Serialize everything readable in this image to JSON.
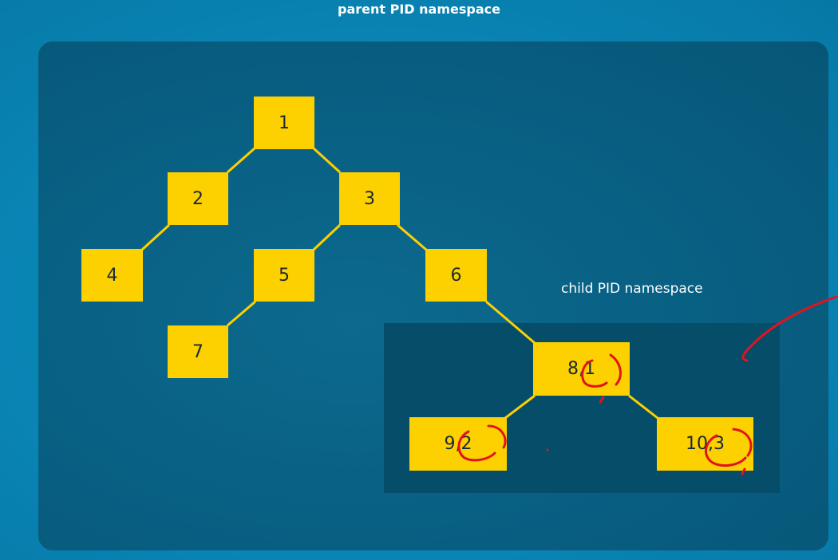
{
  "diagram": {
    "parent_label": "parent PID namespace",
    "child_label": "child PID namespace",
    "nodes": {
      "n1": "1",
      "n2": "2",
      "n3": "3",
      "n4": "4",
      "n5": "5",
      "n6": "6",
      "n7": "7",
      "n8": "8,1",
      "n9": "9,2",
      "n10": "10,3"
    },
    "colors": {
      "background": "#0a86b4",
      "parent_namespace": "#085f82",
      "child_namespace": "#064d69",
      "node": "#fdd000",
      "link": "#fdd000",
      "annotation_ink": "#e0141e"
    }
  }
}
